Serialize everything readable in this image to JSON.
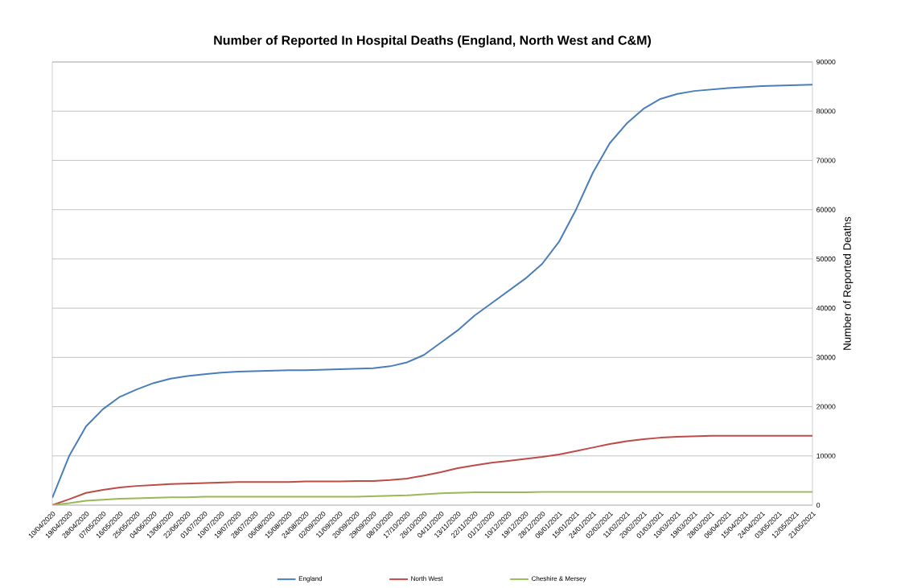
{
  "chart_data": {
    "type": "line",
    "title": "Number of Reported In Hospital Deaths (England, North West and C&M)",
    "ylabel": "Number of Reported Deaths",
    "categories": [
      "10/04/2020",
      "19/04/2020",
      "28/04/2020",
      "07/05/2020",
      "16/05/2020",
      "25/05/2020",
      "04/06/2020",
      "13/06/2020",
      "22/06/2020",
      "01/07/2020",
      "10/07/2020",
      "19/07/2020",
      "28/07/2020",
      "06/08/2020",
      "15/08/2020",
      "24/08/2020",
      "02/09/2020",
      "11/09/2020",
      "20/09/2020",
      "29/09/2020",
      "08/10/2020",
      "17/10/2020",
      "26/10/2020",
      "04/11/2020",
      "13/11/2020",
      "22/11/2020",
      "01/12/2020",
      "10/12/2020",
      "19/12/2020",
      "28/12/2020",
      "06/01/2021",
      "15/01/2021",
      "24/01/2021",
      "02/02/2021",
      "11/02/2021",
      "20/02/2021",
      "01/03/2021",
      "10/03/2021",
      "19/03/2021",
      "28/03/2021",
      "06/04/2021",
      "15/04/2021",
      "24/04/2021",
      "03/05/2021",
      "12/05/2021",
      "21/05/2021"
    ],
    "series": [
      {
        "name": "England",
        "color": "#4a7ebb",
        "values": [
          1500,
          10000,
          16000,
          19500,
          22000,
          23500,
          24800,
          25700,
          26200,
          26600,
          26900,
          27100,
          27200,
          27300,
          27400,
          27400,
          27500,
          27600,
          27700,
          27800,
          28200,
          29000,
          30500,
          33000,
          35500,
          38500,
          41000,
          43500,
          46000,
          49000,
          53500,
          60000,
          67500,
          73500,
          77500,
          80500,
          82500,
          83500,
          84100,
          84400,
          84700,
          84900,
          85100,
          85200,
          85300,
          85400
        ]
      },
      {
        "name": "North West",
        "color": "#be4b48",
        "values": [
          0,
          1200,
          2500,
          3100,
          3600,
          3900,
          4100,
          4300,
          4400,
          4500,
          4600,
          4700,
          4700,
          4700,
          4700,
          4800,
          4800,
          4800,
          4900,
          4900,
          5100,
          5400,
          6000,
          6700,
          7500,
          8100,
          8600,
          9000,
          9400,
          9800,
          10300,
          11000,
          11700,
          12400,
          13000,
          13400,
          13700,
          13900,
          14000,
          14100,
          14100,
          14100,
          14100,
          14100,
          14100,
          14100
        ]
      },
      {
        "name": "Cheshire & Mersey",
        "color": "#98b954",
        "values": [
          0,
          400,
          900,
          1100,
          1300,
          1400,
          1500,
          1600,
          1600,
          1700,
          1700,
          1700,
          1700,
          1700,
          1700,
          1700,
          1700,
          1700,
          1700,
          1800,
          1900,
          2000,
          2200,
          2400,
          2500,
          2600,
          2600,
          2600,
          2600,
          2700,
          2700,
          2700,
          2700,
          2700,
          2700,
          2700,
          2700,
          2700,
          2700,
          2700,
          2700,
          2700,
          2700,
          2700,
          2700,
          2700
        ]
      }
    ],
    "ylim": [
      0,
      90000
    ],
    "yticks": [
      0,
      10000,
      20000,
      30000,
      40000,
      50000,
      60000,
      70000,
      80000,
      90000
    ],
    "grid": "y",
    "legend": "bottom",
    "marker": "none",
    "line_style": "solid"
  }
}
